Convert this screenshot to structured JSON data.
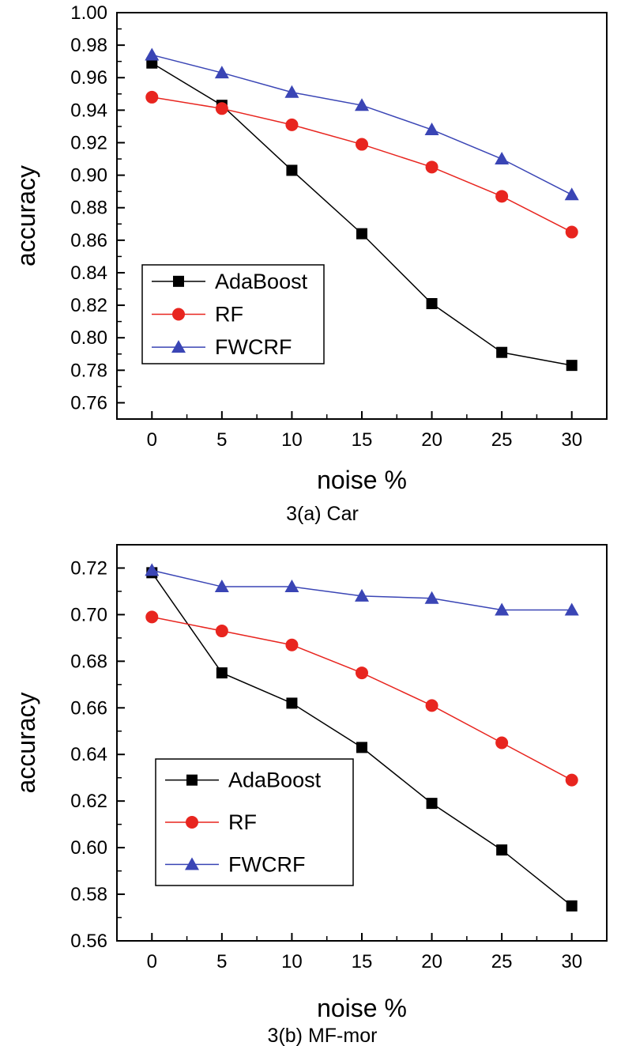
{
  "chart_data": [
    {
      "type": "line",
      "caption": "3(a)  Car",
      "xlabel": "noise %",
      "ylabel": "accuracy",
      "x": [
        0,
        5,
        10,
        15,
        20,
        25,
        30
      ],
      "x_ticks": [
        0,
        5,
        10,
        15,
        20,
        25,
        30
      ],
      "xlim": [
        -2.5,
        32.5
      ],
      "ylim": [
        0.75,
        1.0
      ],
      "y_ticks": [
        "0.76",
        "0.78",
        "0.80",
        "0.82",
        "0.84",
        "0.86",
        "0.88",
        "0.90",
        "0.92",
        "0.94",
        "0.96",
        "0.98",
        "1.00"
      ],
      "grid": false,
      "legend_position": "lower-left",
      "series": [
        {
          "name": "AdaBoost",
          "color": "#000000",
          "marker": "square",
          "values": [
            0.969,
            0.943,
            0.903,
            0.864,
            0.821,
            0.791,
            0.783
          ]
        },
        {
          "name": "RF",
          "color": "#e8251f",
          "marker": "circle",
          "values": [
            0.948,
            0.941,
            0.931,
            0.919,
            0.905,
            0.887,
            0.865
          ]
        },
        {
          "name": "FWCRF",
          "color": "#3a45b5",
          "marker": "triangle",
          "values": [
            0.974,
            0.963,
            0.951,
            0.943,
            0.928,
            0.91,
            0.888
          ]
        }
      ]
    },
    {
      "type": "line",
      "caption": "3(b)  MF-mor",
      "xlabel": "noise %",
      "ylabel": "accuracy",
      "x": [
        0,
        5,
        10,
        15,
        20,
        25,
        30
      ],
      "x_ticks": [
        0,
        5,
        10,
        15,
        20,
        25,
        30
      ],
      "xlim": [
        -2.5,
        32.5
      ],
      "ylim": [
        0.56,
        0.73
      ],
      "y_ticks": [
        "0.56",
        "0.58",
        "0.60",
        "0.62",
        "0.64",
        "0.66",
        "0.68",
        "0.70",
        "0.72"
      ],
      "grid": false,
      "legend_position": "lower-left",
      "series": [
        {
          "name": "AdaBoost",
          "color": "#000000",
          "marker": "square",
          "values": [
            0.718,
            0.675,
            0.662,
            0.643,
            0.619,
            0.599,
            0.575
          ]
        },
        {
          "name": "RF",
          "color": "#e8251f",
          "marker": "circle",
          "values": [
            0.699,
            0.693,
            0.687,
            0.675,
            0.661,
            0.645,
            0.629
          ]
        },
        {
          "name": "FWCRF",
          "color": "#3a45b5",
          "marker": "triangle",
          "values": [
            0.719,
            0.712,
            0.712,
            0.708,
            0.707,
            0.702,
            0.702
          ]
        }
      ]
    }
  ]
}
